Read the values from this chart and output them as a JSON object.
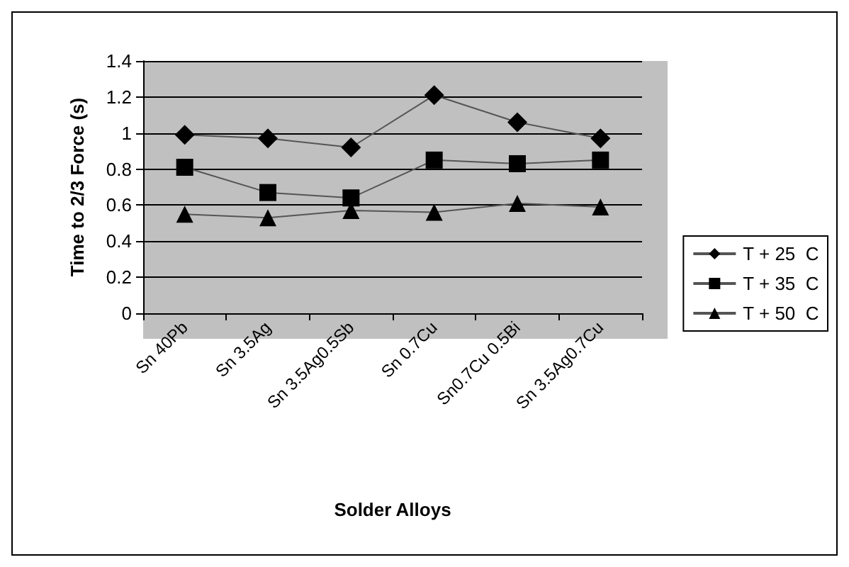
{
  "chart_data": {
    "type": "line",
    "xlabel": "Solder Alloys",
    "ylabel": "Time to 2/3 Force (s)",
    "categories": [
      "Sn 40Pb",
      "Sn 3.5Ag",
      "Sn 3.5Ag0.5Sb",
      "Sn 0.7Cu",
      "Sn0.7Cu 0.5Bi",
      "Sn 3.5Ag0.7Cu"
    ],
    "series": [
      {
        "name": "T + 25  C",
        "color": "#000000",
        "marker": "diamond",
        "values": [
          0.99,
          0.97,
          0.92,
          1.21,
          1.06,
          0.97
        ]
      },
      {
        "name": "T + 35  C",
        "color": "#000000",
        "marker": "square",
        "values": [
          0.81,
          0.67,
          0.64,
          0.85,
          0.83,
          0.85
        ]
      },
      {
        "name": "T + 50  C",
        "color": "#000000",
        "marker": "triangle",
        "values": [
          0.55,
          0.53,
          0.57,
          0.56,
          0.61,
          0.59
        ]
      }
    ],
    "ylim": [
      0,
      1.4
    ],
    "yticks": [
      0,
      0.2,
      0.4,
      0.6,
      0.8,
      1,
      1.2,
      1.4
    ],
    "grid": "y",
    "legend": "right",
    "line_style": "solid"
  }
}
